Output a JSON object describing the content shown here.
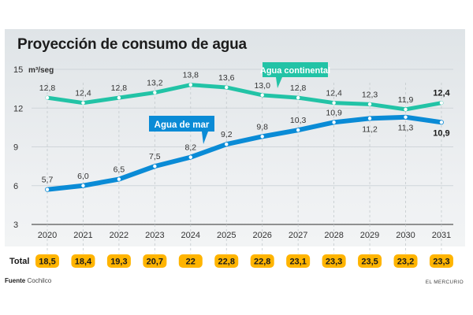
{
  "chart_data": {
    "type": "line",
    "title": "Proyección de consumo de agua",
    "ylabel": "m³/seg",
    "xlabel": "",
    "ylim": [
      3,
      15
    ],
    "yticks": [
      3,
      6,
      9,
      12,
      15
    ],
    "x": [
      "2020",
      "2021",
      "2022",
      "2023",
      "2024",
      "2025",
      "2026",
      "2027",
      "2028",
      "2029",
      "2030",
      "2031"
    ],
    "grid": true,
    "series": [
      {
        "name": "Agua continental",
        "color": "#22c3a6",
        "values": [
          12.8,
          12.4,
          12.8,
          13.2,
          13.8,
          13.6,
          13.0,
          12.8,
          12.4,
          12.3,
          11.9,
          12.4
        ],
        "labels": [
          "12,8",
          "12,4",
          "12,8",
          "13,2",
          "13,8",
          "13,6",
          "13,0",
          "12,8",
          "12,4",
          "12,3",
          "11,9",
          "12,4"
        ]
      },
      {
        "name": "Agua de mar",
        "color": "#0a8bd6",
        "values": [
          5.7,
          6.0,
          6.5,
          7.5,
          8.2,
          9.2,
          9.8,
          10.3,
          10.9,
          11.2,
          11.3,
          10.9
        ],
        "labels": [
          "5,7",
          "6,0",
          "6,5",
          "7,5",
          "8,2",
          "9,2",
          "9,8",
          "10,3",
          "10,9",
          "11,2",
          "11,3",
          "10,9"
        ]
      }
    ],
    "totals_label": "Total",
    "totals": [
      "18,5",
      "18,4",
      "19,3",
      "20,7",
      "22",
      "22,8",
      "22,8",
      "23,1",
      "23,3",
      "23,5",
      "23,2",
      "23,3"
    ],
    "totals_color": "#ffb400"
  },
  "footer": {
    "source_label": "Fuente",
    "source_value": "Cochilco",
    "brand": "EL MERCURIO"
  }
}
